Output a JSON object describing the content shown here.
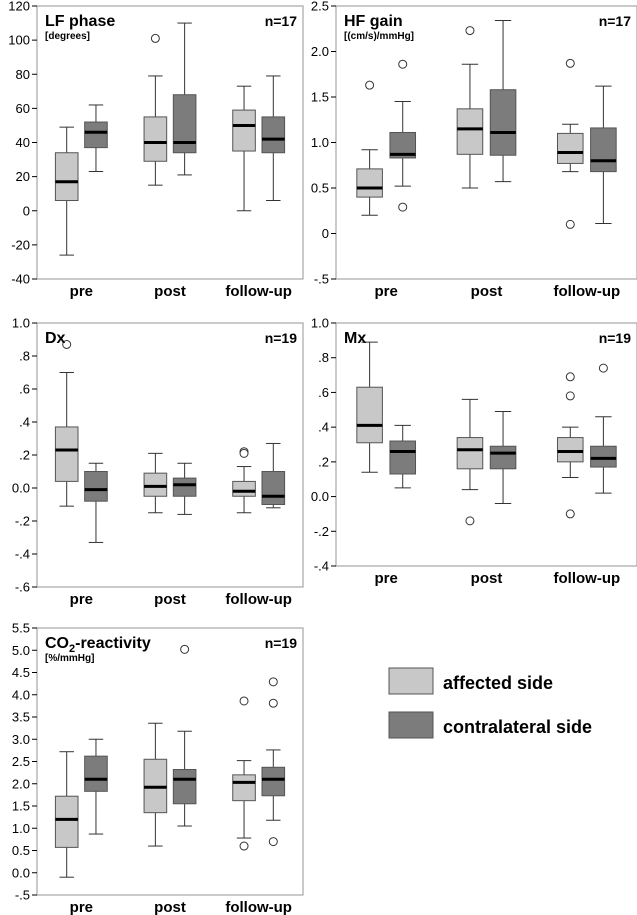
{
  "colors": {
    "affected": "#c8c8c8",
    "contralateral": "#7c7c7c",
    "median": "#000000",
    "frame": "#a6a6a6"
  },
  "legend": {
    "affected_label": "affected side",
    "contralateral_label": "contralateral side"
  },
  "chart_data": [
    {
      "type": "boxplot",
      "title": "LF phase",
      "unit": "[degrees]",
      "n_label": "n=17",
      "categories": [
        "pre",
        "post",
        "follow-up"
      ],
      "ylim": [
        -40,
        120
      ],
      "yticks": [
        -40,
        -20,
        0,
        20,
        40,
        60,
        80,
        100,
        120
      ],
      "ytick_labels": [
        "-40",
        "-20",
        "0",
        "20",
        "40",
        "60",
        "80",
        "100",
        "120"
      ],
      "series": [
        {
          "name": "affected side",
          "boxes": [
            {
              "whisker_low": -26,
              "q1": 6,
              "median": 17,
              "q3": 34,
              "whisker_high": 49,
              "outliers": []
            },
            {
              "whisker_low": 15,
              "q1": 29,
              "median": 40,
              "q3": 55,
              "whisker_high": 79,
              "outliers": [
                101
              ]
            },
            {
              "whisker_low": 0,
              "q1": 35,
              "median": 50,
              "q3": 59,
              "whisker_high": 73,
              "outliers": []
            }
          ]
        },
        {
          "name": "contralateral side",
          "boxes": [
            {
              "whisker_low": 23,
              "q1": 37,
              "median": 46,
              "q3": 52,
              "whisker_high": 62,
              "outliers": []
            },
            {
              "whisker_low": 21,
              "q1": 34,
              "median": 40,
              "q3": 68,
              "whisker_high": 110,
              "outliers": []
            },
            {
              "whisker_low": 6,
              "q1": 34,
              "median": 42,
              "q3": 55,
              "whisker_high": 79,
              "outliers": []
            }
          ]
        }
      ]
    },
    {
      "type": "boxplot",
      "title": "HF gain",
      "unit": "[(cm/s)/mmHg]",
      "n_label": "n=17",
      "categories": [
        "pre",
        "post",
        "follow-up"
      ],
      "ylim": [
        -0.5,
        2.5
      ],
      "yticks": [
        -0.5,
        0,
        0.5,
        1.0,
        1.5,
        2.0,
        2.5
      ],
      "ytick_labels": [
        "-.5",
        "0",
        "0.5",
        "1.0",
        "1.5",
        "2.0",
        "2.5"
      ],
      "series": [
        {
          "name": "affected side",
          "boxes": [
            {
              "whisker_low": 0.2,
              "q1": 0.4,
              "median": 0.5,
              "q3": 0.71,
              "whisker_high": 0.92,
              "outliers": [
                1.63
              ]
            },
            {
              "whisker_low": 0.5,
              "q1": 0.87,
              "median": 1.15,
              "q3": 1.37,
              "whisker_high": 1.86,
              "outliers": [
                2.23
              ]
            },
            {
              "whisker_low": 0.68,
              "q1": 0.77,
              "median": 0.89,
              "q3": 1.1,
              "whisker_high": 1.2,
              "outliers": [
                1.87,
                0.1
              ]
            }
          ]
        },
        {
          "name": "contralateral side",
          "boxes": [
            {
              "whisker_low": 0.52,
              "q1": 0.83,
              "median": 0.87,
              "q3": 1.11,
              "whisker_high": 1.45,
              "outliers": [
                1.86,
                0.29
              ]
            },
            {
              "whisker_low": 0.57,
              "q1": 0.86,
              "median": 1.11,
              "q3": 1.58,
              "whisker_high": 2.34,
              "outliers": []
            },
            {
              "whisker_low": 0.11,
              "q1": 0.68,
              "median": 0.8,
              "q3": 1.16,
              "whisker_high": 1.62,
              "outliers": []
            }
          ]
        }
      ]
    },
    {
      "type": "boxplot",
      "title": "Dx",
      "unit": "",
      "n_label": "n=19",
      "categories": [
        "pre",
        "post",
        "follow-up"
      ],
      "ylim": [
        -0.6,
        1.0
      ],
      "yticks": [
        -0.6,
        -0.4,
        -0.2,
        0,
        0.2,
        0.4,
        0.6,
        0.8,
        1.0
      ],
      "ytick_labels": [
        "-.6",
        "-.4",
        "-.2",
        "0.0",
        ".2",
        ".4",
        ".6",
        ".8",
        "1.0"
      ],
      "series": [
        {
          "name": "affected side",
          "boxes": [
            {
              "whisker_low": -0.11,
              "q1": 0.04,
              "median": 0.23,
              "q3": 0.37,
              "whisker_high": 0.7,
              "outliers": [
                0.87
              ]
            },
            {
              "whisker_low": -0.15,
              "q1": -0.05,
              "median": 0.01,
              "q3": 0.09,
              "whisker_high": 0.21,
              "outliers": []
            },
            {
              "whisker_low": -0.15,
              "q1": -0.05,
              "median": -0.02,
              "q3": 0.04,
              "whisker_high": 0.13,
              "outliers": [
                0.22,
                0.21
              ]
            }
          ]
        },
        {
          "name": "contralateral side",
          "boxes": [
            {
              "whisker_low": -0.33,
              "q1": -0.08,
              "median": -0.01,
              "q3": 0.1,
              "whisker_high": 0.15,
              "outliers": []
            },
            {
              "whisker_low": -0.16,
              "q1": -0.05,
              "median": 0.02,
              "q3": 0.06,
              "whisker_high": 0.15,
              "outliers": []
            },
            {
              "whisker_low": -0.12,
              "q1": -0.1,
              "median": -0.05,
              "q3": 0.1,
              "whisker_high": 0.27,
              "outliers": []
            }
          ]
        }
      ]
    },
    {
      "type": "boxplot",
      "title": "Mx",
      "unit": "",
      "n_label": "n=19",
      "categories": [
        "pre",
        "post",
        "follow-up"
      ],
      "ylim": [
        -0.4,
        1.0
      ],
      "yticks": [
        -0.4,
        -0.2,
        0,
        0.2,
        0.4,
        0.6,
        0.8,
        1.0
      ],
      "ytick_labels": [
        "-.4",
        "-.2",
        "0.0",
        ".2",
        ".4",
        ".6",
        ".8",
        "1.0"
      ],
      "series": [
        {
          "name": "affected side",
          "boxes": [
            {
              "whisker_low": 0.14,
              "q1": 0.31,
              "median": 0.41,
              "q3": 0.63,
              "whisker_high": 0.89,
              "outliers": []
            },
            {
              "whisker_low": 0.04,
              "q1": 0.16,
              "median": 0.27,
              "q3": 0.34,
              "whisker_high": 0.56,
              "outliers": [
                -0.14
              ]
            },
            {
              "whisker_low": 0.11,
              "q1": 0.2,
              "median": 0.26,
              "q3": 0.34,
              "whisker_high": 0.4,
              "outliers": [
                0.69,
                0.58,
                -0.1
              ]
            }
          ]
        },
        {
          "name": "contralateral side",
          "boxes": [
            {
              "whisker_low": 0.05,
              "q1": 0.13,
              "median": 0.26,
              "q3": 0.32,
              "whisker_high": 0.41,
              "outliers": []
            },
            {
              "whisker_low": -0.04,
              "q1": 0.16,
              "median": 0.25,
              "q3": 0.29,
              "whisker_high": 0.49,
              "outliers": []
            },
            {
              "whisker_low": 0.02,
              "q1": 0.17,
              "median": 0.22,
              "q3": 0.29,
              "whisker_high": 0.46,
              "outliers": [
                0.74
              ]
            }
          ]
        }
      ]
    },
    {
      "type": "boxplot",
      "title": "CO₂-reactivity",
      "unit": "[%/mmHg]",
      "n_label": "n=19",
      "categories": [
        "pre",
        "post",
        "follow-up"
      ],
      "ylim": [
        -0.5,
        5.5
      ],
      "yticks": [
        -0.5,
        0,
        0.5,
        1.0,
        1.5,
        2.0,
        2.5,
        3.0,
        3.5,
        4.0,
        4.5,
        5.0,
        5.5
      ],
      "ytick_labels": [
        "-.5",
        "0.0",
        "0.5",
        "1.0",
        "1.5",
        "2.0",
        "2.5",
        "3.0",
        "3.5",
        "4.0",
        "4.5",
        "5.0",
        "5.5"
      ],
      "series": [
        {
          "name": "affected side",
          "boxes": [
            {
              "whisker_low": -0.1,
              "q1": 0.57,
              "median": 1.2,
              "q3": 1.72,
              "whisker_high": 2.72,
              "outliers": []
            },
            {
              "whisker_low": 0.6,
              "q1": 1.35,
              "median": 1.92,
              "q3": 2.55,
              "whisker_high": 3.36,
              "outliers": []
            },
            {
              "whisker_low": 0.78,
              "q1": 1.62,
              "median": 2.03,
              "q3": 2.2,
              "whisker_high": 2.52,
              "outliers": [
                3.86,
                0.6
              ]
            }
          ]
        },
        {
          "name": "contralateral side",
          "boxes": [
            {
              "whisker_low": 0.87,
              "q1": 1.83,
              "median": 2.1,
              "q3": 2.62,
              "whisker_high": 3.0,
              "outliers": []
            },
            {
              "whisker_low": 1.05,
              "q1": 1.55,
              "median": 2.1,
              "q3": 2.32,
              "whisker_high": 3.18,
              "outliers": [
                5.02
              ]
            },
            {
              "whisker_low": 1.18,
              "q1": 1.73,
              "median": 2.1,
              "q3": 2.37,
              "whisker_high": 2.76,
              "outliers": [
                4.29,
                3.81,
                0.7
              ]
            }
          ]
        }
      ]
    }
  ]
}
